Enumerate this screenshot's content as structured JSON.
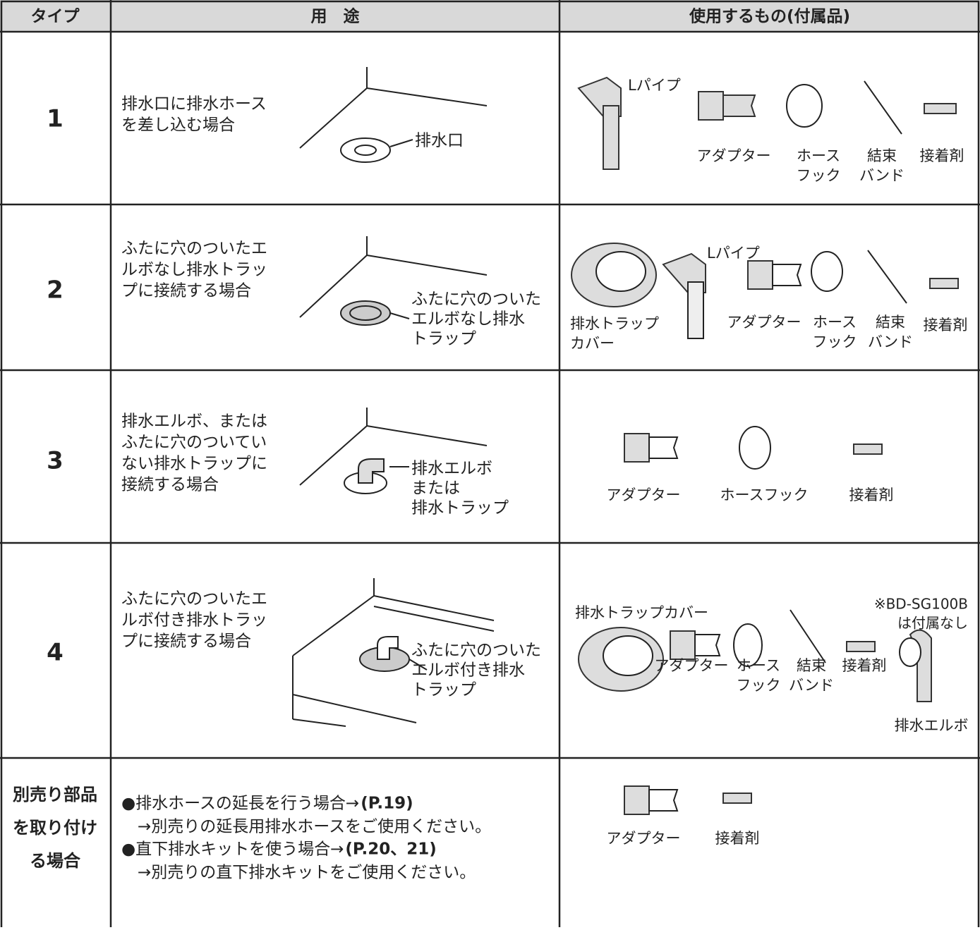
{
  "header": {
    "type": "タイプ",
    "usage": "用　途",
    "parts": "使用するもの(付属品)"
  },
  "rows": [
    {
      "type": [
        "1"
      ],
      "usage": [
        "排水口に排水ホース",
        "を差し込む場合"
      ],
      "diagram": [
        "排水口"
      ],
      "parts": [
        [
          "Lパイプ"
        ],
        [
          "アダプター"
        ],
        [
          "ホース",
          "フック"
        ],
        [
          "結束",
          "バンド"
        ],
        [
          "接着剤"
        ]
      ]
    },
    {
      "type": [
        "2"
      ],
      "usage": [
        "ふたに穴のついたエ",
        "ルボなし排水トラッ",
        "プに接続する場合"
      ],
      "diagram": [
        "ふたに穴のついた",
        "エルボなし排水",
        "トラップ"
      ],
      "parts": [
        [
          "排水トラップ",
          "カバー"
        ],
        [
          "Lパイプ"
        ],
        [
          "アダプター"
        ],
        [
          "ホース",
          "フック"
        ],
        [
          "結束",
          "バンド"
        ],
        [
          "接着剤"
        ]
      ]
    },
    {
      "type": [
        "3"
      ],
      "usage": [
        "排水エルボ、または",
        "ふたに穴のついてい",
        "ない排水トラップに",
        "接続する場合"
      ],
      "diagram": [
        "排水エルボ",
        "または",
        "排水トラップ"
      ],
      "parts": [
        [
          "アダプター"
        ],
        [
          "ホースフック"
        ],
        [
          "接着剤"
        ]
      ]
    },
    {
      "type": [
        "4"
      ],
      "usage": [
        "ふたに穴のついたエ",
        "ルボ付き排水トラッ",
        "プに接続する場合"
      ],
      "diagram": [
        "ふたに穴のついた",
        "エルボ付き排水",
        "トラップ"
      ],
      "parts": [
        [
          "排水トラップカバー"
        ],
        [
          "アダプター"
        ],
        [
          "ホース",
          "フック"
        ],
        [
          "結束",
          "バンド"
        ],
        [
          "接着剤"
        ],
        [
          "排水エルボ"
        ]
      ],
      "note": [
        "※BD-SG100B",
        "は付属なし"
      ]
    },
    {
      "type": [
        "別売り部品",
        "を取り付け",
        "る場合"
      ],
      "items": [
        {
          "text": "●排水ホースの延長を行う場合→",
          "ref": "(P.19)",
          "sub": "→別売りの延長用排水ホースをご使用ください。"
        },
        {
          "text": "●直下排水キットを使う場合→",
          "ref": "(P.20、21)",
          "sub": "→別売りの直下排水キットをご使用ください。"
        }
      ],
      "parts": [
        [
          "アダプター"
        ],
        [
          "接着剤"
        ]
      ]
    }
  ]
}
